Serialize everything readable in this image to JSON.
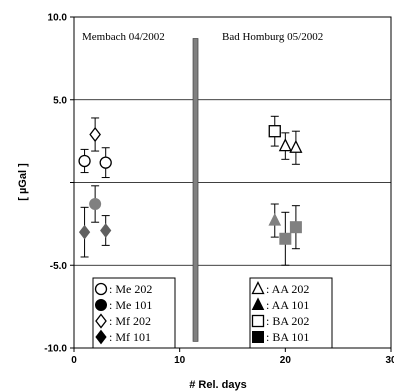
{
  "chart_data": {
    "type": "scatter",
    "xlabel": "# Rel. days",
    "ylabel": "[ µGal ]",
    "xlim": [
      0,
      30
    ],
    "ylim": [
      -10.0,
      10.0
    ],
    "x_ticks": [
      0,
      10,
      20,
      30
    ],
    "y_ticks": [
      -10.0,
      -5.0,
      0.0,
      5.0,
      10.0
    ],
    "y_tick_labels": [
      "-10.0",
      "-5.0",
      "",
      "5.0",
      "10.0"
    ],
    "grid": "horizontal",
    "annotations": [
      "Membach 04/2002",
      "Bad Homburg 05/2002"
    ],
    "divider_bar": {
      "x": 11.5,
      "y_range": [
        -9.6,
        8.7
      ],
      "color": "#808080"
    },
    "series": [
      {
        "name": "Me 202",
        "marker": "circle-open",
        "color": "#000000",
        "points": [
          {
            "x": 1,
            "y": 1.3,
            "err": 0.7
          },
          {
            "x": 3,
            "y": 1.2,
            "err": 0.9
          }
        ]
      },
      {
        "name": "Me 101",
        "marker": "circle-filled",
        "color": "#808080",
        "points": [
          {
            "x": 2,
            "y": -1.3,
            "err": 1.1
          }
        ]
      },
      {
        "name": "Mf 202",
        "marker": "diamond-open",
        "color": "#000000",
        "points": [
          {
            "x": 2,
            "y": 2.9,
            "err": 1.0
          }
        ]
      },
      {
        "name": "Mf 101",
        "marker": "diamond-filled",
        "color": "#606060",
        "points": [
          {
            "x": 1,
            "y": -3.0,
            "err": 1.5
          },
          {
            "x": 3,
            "y": -2.9,
            "err": 0.9
          }
        ]
      },
      {
        "name": "AA 202",
        "marker": "triangle-open",
        "color": "#000000",
        "points": [
          {
            "x": 20,
            "y": 2.2,
            "err": 0.8
          },
          {
            "x": 21,
            "y": 2.1,
            "err": 1.0
          }
        ]
      },
      {
        "name": "AA 101",
        "marker": "triangle-filled",
        "color": "#808080",
        "points": [
          {
            "x": 19,
            "y": -2.3,
            "err": 1.0
          }
        ]
      },
      {
        "name": "BA 202",
        "marker": "square-open",
        "color": "#000000",
        "points": [
          {
            "x": 19,
            "y": 3.1,
            "err": 0.9
          }
        ]
      },
      {
        "name": "BA 101",
        "marker": "square-filled",
        "color": "#808080",
        "points": [
          {
            "x": 20,
            "y": -3.4,
            "err": 1.6
          },
          {
            "x": 21,
            "y": -2.7,
            "err": 1.3
          }
        ]
      }
    ],
    "legends": [
      {
        "placement": "bottom-left",
        "items": [
          ": Me 202",
          ": Me 101",
          ": Mf 202",
          ": Mf 101"
        ]
      },
      {
        "placement": "bottom-right",
        "items": [
          ": AA 202",
          ": AA 101",
          ": BA 202",
          ": BA 101"
        ]
      }
    ]
  }
}
